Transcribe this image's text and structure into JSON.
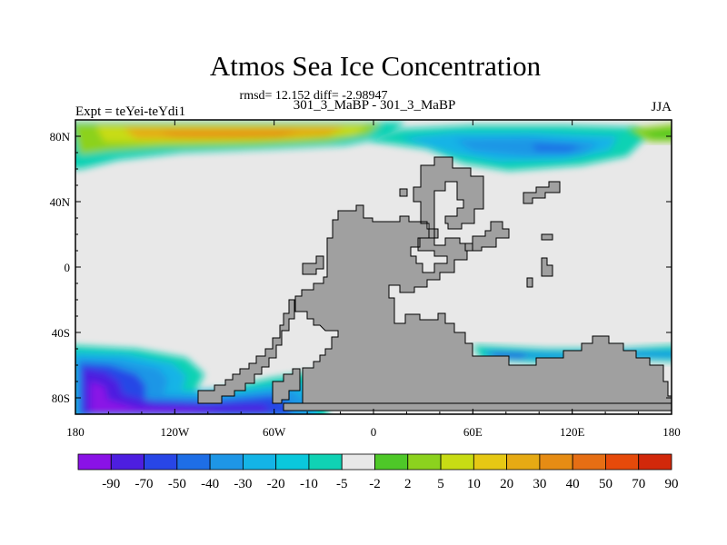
{
  "chart_data": {
    "type": "heatmap",
    "title": "Atmos Sea Ice Concentration",
    "stats_line": "rmsd= 12.152 diff= -2.98947",
    "subtitle": "301_3_MaBP - 301_3_MaBP",
    "left_label": "Expt = teYei-teYdi1",
    "right_label": "JJA",
    "projection": "cylindrical equidistant",
    "xlim": [
      -180,
      180
    ],
    "ylim": [
      -90,
      90
    ],
    "x_ticks": [
      {
        "value": -180,
        "label": "180"
      },
      {
        "value": -120,
        "label": "120W"
      },
      {
        "value": -60,
        "label": "60W"
      },
      {
        "value": 0,
        "label": "0"
      },
      {
        "value": 60,
        "label": "60E"
      },
      {
        "value": 120,
        "label": "120E"
      },
      {
        "value": 180,
        "label": "180"
      }
    ],
    "y_ticks": [
      {
        "value": 80,
        "label": "80N"
      },
      {
        "value": 40,
        "label": "40N"
      },
      {
        "value": 0,
        "label": "0"
      },
      {
        "value": -40,
        "label": "40S"
      },
      {
        "value": -80,
        "label": "80S"
      }
    ],
    "colorbar": {
      "levels": [
        "-90",
        "-70",
        "-50",
        "-40",
        "-30",
        "-20",
        "-10",
        "-5",
        "-2",
        "2",
        "5",
        "10",
        "20",
        "30",
        "40",
        "50",
        "70",
        "90"
      ],
      "colors": [
        "#8a12e6",
        "#4d1ee0",
        "#2846e6",
        "#1e6ee6",
        "#1e96e6",
        "#14b4e6",
        "#0ac8dc",
        "#10d2b4",
        "#e8e8e8",
        "#4ec828",
        "#8cd21e",
        "#c8dc14",
        "#e6c814",
        "#e6aa14",
        "#e68c14",
        "#e66e14",
        "#e64a0a",
        "#d2280a"
      ],
      "land_color": "#a0a0a0",
      "zero_color": "#e8e8e8"
    },
    "regions": [
      {
        "name": "arctic-atlantic-pacific-positive",
        "lon": [
          -180,
          -60
        ],
        "lat": [
          62,
          88
        ],
        "approx_value": "20 to 50"
      },
      {
        "name": "arctic-eurasia-negative",
        "lon": [
          0,
          150
        ],
        "lat": [
          65,
          85
        ],
        "approx_value": "-5 to -30"
      },
      {
        "name": "arctic-pacific-right-positive",
        "lon": [
          150,
          180
        ],
        "lat": [
          76,
          84
        ],
        "approx_value": "5 to 20"
      },
      {
        "name": "southern-ocean-pacific-negative",
        "lon": [
          -180,
          -40
        ],
        "lat": [
          -90,
          -50
        ],
        "approx_value": "-30 to -90"
      },
      {
        "name": "southern-indian-negative",
        "lon": [
          60,
          180
        ],
        "lat": [
          -62,
          -50
        ],
        "approx_value": "-5 to -40"
      }
    ]
  }
}
